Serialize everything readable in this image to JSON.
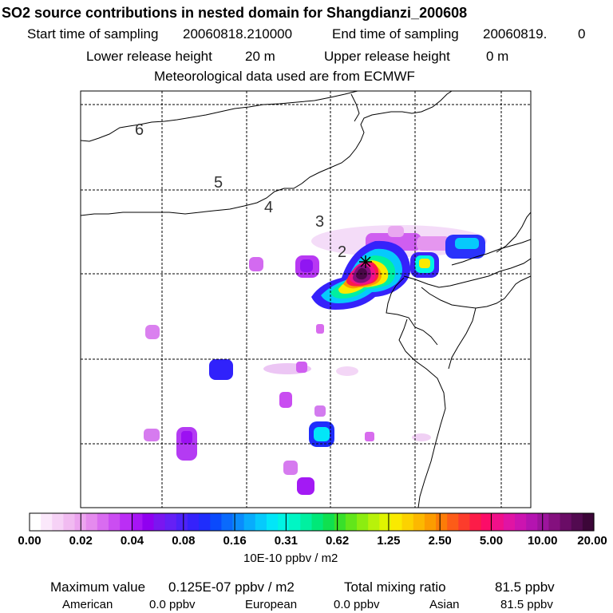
{
  "header": {
    "title": "SO2 source contributions in nested domain for Shangdianzi_200608",
    "start_label": "Start time of sampling",
    "start_value": "20060818.210000",
    "end_label": "End time of sampling",
    "end_value": "20060819.",
    "end_extra": "0",
    "lower_label": "Lower release height",
    "lower_value": "20 m",
    "upper_label": "Upper release height",
    "upper_value": "0 m",
    "met_line": "Meteorological data used are from ECMWF"
  },
  "map": {
    "region_numbers": [
      "6",
      "5",
      "4",
      "3",
      "2"
    ]
  },
  "colorbar": {
    "tick_labels": [
      "0.00",
      "0.02",
      "0.04",
      "0.08",
      "0.16",
      "0.31",
      "0.62",
      "1.25",
      "2.50",
      "5.00",
      "10.00",
      "20.00"
    ],
    "unit_label": "10E-10 ppbv / m2",
    "colors": [
      "#ffffff",
      "#fbe8fb",
      "#f6d2f6",
      "#f1bbf1",
      "#eca4ef",
      "#e58bee",
      "#d96cf0",
      "#cb4df2",
      "#bb2ef5",
      "#a714f5",
      "#9000f0",
      "#7a16f0",
      "#6520f5",
      "#4d22f8",
      "#3522fb",
      "#1f2dfc",
      "#0a4afc",
      "#0a6afc",
      "#0a8cfc",
      "#08acfc",
      "#06cafc",
      "#02e6f8",
      "#00f4e4",
      "#00f6c4",
      "#00f0a0",
      "#00e878",
      "#10e050",
      "#38e02a",
      "#62e61a",
      "#8ced10",
      "#b8f20a",
      "#e0f400",
      "#faea00",
      "#fcd200",
      "#fcb800",
      "#fc9c00",
      "#fc7c08",
      "#fc5c18",
      "#fc3c2c",
      "#fc1c48",
      "#fc0c68",
      "#f0108a",
      "#e014a4",
      "#cc14b0",
      "#b414b0",
      "#9c149c",
      "#84107e",
      "#6a0c66",
      "#520a50",
      "#3c0638"
    ]
  },
  "stats": {
    "max_label": "Maximum value",
    "max_value": "0.125E-07 ppbv / m2",
    "total_label": "Total mixing ratio",
    "total_value": "81.5 ppbv",
    "american_label": "American",
    "american_value": "0.0 ppbv",
    "european_label": "European",
    "european_value": "0.0 ppbv",
    "asian_label": "Asian",
    "asian_value": "81.5 ppbv"
  }
}
